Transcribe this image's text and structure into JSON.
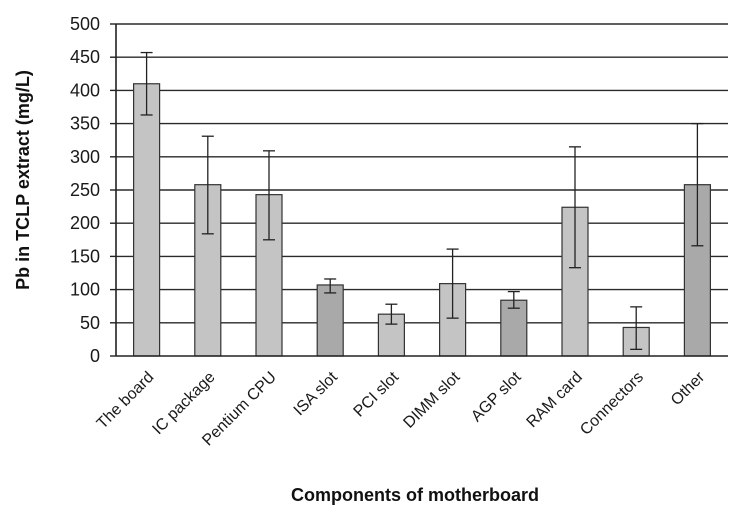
{
  "chart_data": {
    "type": "bar",
    "title": "",
    "xlabel": "Components of motherboard",
    "ylabel": "Pb in TCLP extract (mg/L)",
    "ylim": [
      0,
      500
    ],
    "yticks": [
      0,
      50,
      100,
      150,
      200,
      250,
      300,
      350,
      400,
      450,
      500
    ],
    "grid": true,
    "categories": [
      "The board",
      "IC package",
      "Pentium CPU",
      "ISA slot",
      "PCI slot",
      "DIMM slot",
      "AGP slot",
      "RAM card",
      "Connectors",
      "Other"
    ],
    "values": [
      410,
      258,
      243,
      107,
      63,
      109,
      84,
      224,
      43,
      258
    ],
    "error_low": [
      363,
      184,
      175,
      95,
      48,
      57,
      72,
      133,
      10,
      166
    ],
    "error_high": [
      457,
      331,
      309,
      116,
      78,
      161,
      97,
      315,
      74,
      350
    ],
    "colors": {
      "bar_light": "#c4c4c4",
      "bar_dark": "#a9a9a9",
      "shading": [
        "light",
        "light",
        "light",
        "dark",
        "light",
        "light",
        "dark",
        "light",
        "light",
        "dark"
      ]
    }
  }
}
